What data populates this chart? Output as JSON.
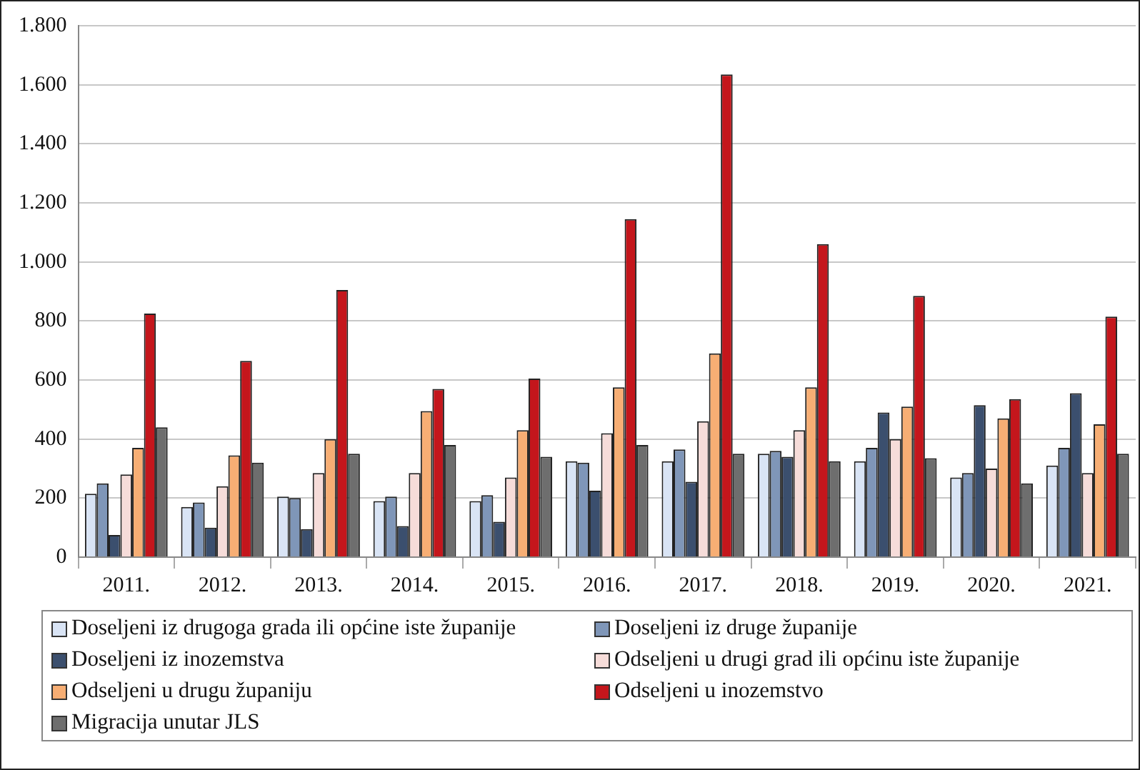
{
  "chart_data": {
    "type": "bar",
    "categories": [
      "2011.",
      "2012.",
      "2013.",
      "2014.",
      "2015.",
      "2016.",
      "2017.",
      "2018.",
      "2019.",
      "2020.",
      "2021."
    ],
    "series": [
      {
        "name": "Doseljeni iz drugoga grada ili općine iste županije",
        "color": "#d9e4f5",
        "values": [
          215,
          170,
          205,
          190,
          190,
          325,
          325,
          350,
          325,
          270,
          310
        ]
      },
      {
        "name": "Doseljeni iz druge županije",
        "color": "#7f96b8",
        "values": [
          250,
          185,
          200,
          205,
          210,
          320,
          365,
          360,
          370,
          285,
          370
        ]
      },
      {
        "name": "Doseljeni iz inozemstva",
        "color": "#3b4f6e",
        "values": [
          75,
          100,
          95,
          105,
          120,
          225,
          255,
          340,
          490,
          515,
          555
        ]
      },
      {
        "name": "Odseljeni u drugi grad ili općinu iste županije",
        "color": "#f6dcd9",
        "values": [
          280,
          240,
          285,
          285,
          270,
          420,
          460,
          430,
          400,
          300,
          285
        ]
      },
      {
        "name": "Odseljeni u drugu županiju",
        "color": "#f7ae74",
        "values": [
          370,
          345,
          400,
          495,
          430,
          575,
          690,
          575,
          510,
          470,
          450
        ]
      },
      {
        "name": "Odseljeni u inozemstvo",
        "color": "#c4161c",
        "values": [
          825,
          665,
          905,
          570,
          605,
          1145,
          1635,
          1060,
          885,
          535,
          815
        ]
      },
      {
        "name": "Migracija unutar JLS",
        "color": "#6e6e6e",
        "values": [
          440,
          320,
          350,
          380,
          340,
          380,
          350,
          325,
          335,
          250,
          350
        ]
      }
    ],
    "ylim": [
      0,
      1800
    ],
    "yticks": [
      0,
      {
        "value": 200,
        "label": "200"
      },
      {
        "value": 400,
        "label": "400"
      },
      {
        "value": 600,
        "label": "600"
      },
      {
        "value": 800,
        "label": "800"
      },
      {
        "value": 1000,
        "label": "1.000"
      },
      {
        "value": 1200,
        "label": "1.200"
      },
      {
        "value": 1400,
        "label": "1.400"
      },
      {
        "value": 1600,
        "label": "1.600"
      },
      {
        "value": 1800,
        "label": "1.800"
      }
    ],
    "grid": true,
    "legend": "bottom"
  }
}
